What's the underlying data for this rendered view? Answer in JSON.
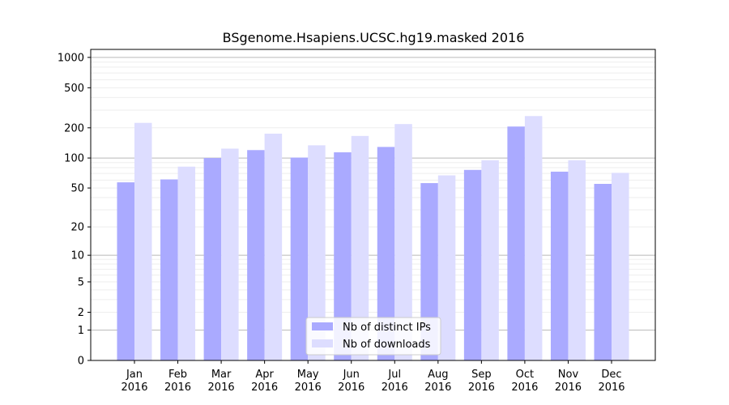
{
  "chart_data": {
    "type": "bar",
    "title": "BSgenome.Hsapiens.UCSC.hg19.masked 2016",
    "xlabel": "",
    "ylabel": "",
    "yscale": "log1p",
    "ylim": [
      0,
      1200
    ],
    "yticks": [
      0,
      1,
      2,
      5,
      10,
      20,
      50,
      100,
      200,
      500,
      1000
    ],
    "categories": [
      [
        "Jan",
        "2016"
      ],
      [
        "Feb",
        "2016"
      ],
      [
        "Mar",
        "2016"
      ],
      [
        "Apr",
        "2016"
      ],
      [
        "May",
        "2016"
      ],
      [
        "Jun",
        "2016"
      ],
      [
        "Jul",
        "2016"
      ],
      [
        "Aug",
        "2016"
      ],
      [
        "Sep",
        "2016"
      ],
      [
        "Oct",
        "2016"
      ],
      [
        "Nov",
        "2016"
      ],
      [
        "Dec",
        "2016"
      ]
    ],
    "series": [
      {
        "name": "Nb of distinct IPs",
        "color": "#aaaaff",
        "values": [
          57,
          61,
          100,
          120,
          101,
          114,
          129,
          56,
          76,
          206,
          73,
          55
        ]
      },
      {
        "name": "Nb of downloads",
        "color": "#ddddff",
        "values": [
          224,
          82,
          124,
          175,
          134,
          166,
          218,
          67,
          95,
          262,
          95,
          71
        ]
      }
    ],
    "legend_position": "bottom-center",
    "grid": true
  }
}
